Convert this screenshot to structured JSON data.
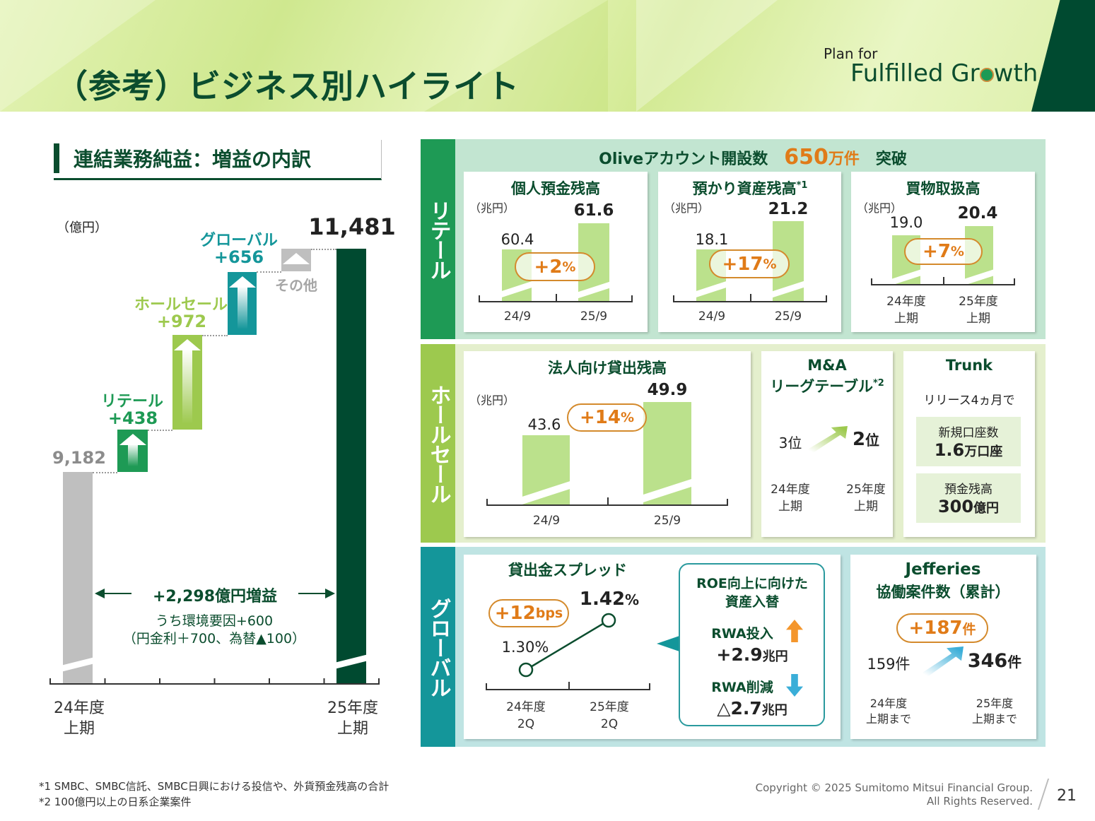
{
  "header": {
    "title": "（参考）ビジネス別ハイライト",
    "logo_line1": "Plan for",
    "logo_line2_a": "Fulfilled Gr",
    "logo_line2_b": "wth"
  },
  "colors": {
    "dark_green": "#004a30",
    "retail": "#1e9a55",
    "wholesale": "#9dc94e",
    "global": "#14969a",
    "other": "#bfbfbf",
    "accent_orange": "#e07b18"
  },
  "left": {
    "section_title": "連結業務純益：増益の内訳",
    "unit": "（億円）",
    "waterfall": {
      "start": {
        "label": "24年度\n上期",
        "line1": "24年度",
        "line2": "上期",
        "value": "9,182"
      },
      "steps": [
        {
          "name": "リテール",
          "value": "+438"
        },
        {
          "name": "ホールセール",
          "value": "+972"
        },
        {
          "name": "グローバル",
          "value": "+656"
        },
        {
          "name": "その他",
          "value": ""
        }
      ],
      "end": {
        "line1": "25年度",
        "line2": "上期",
        "value": "11,481"
      }
    },
    "increase_label": "+2,298億円増益",
    "increase_sub1": "うち環境要因+600",
    "increase_sub2": "（円金利＋700、為替▲100）"
  },
  "retail": {
    "label": "リテール",
    "headline_a": "Oliveアカウント開設数",
    "headline_num": "650",
    "headline_unit": "万件",
    "headline_b": "突破",
    "cards": [
      {
        "title": "個人預金残高",
        "unit": "（兆円）",
        "v1": "60.4",
        "v2": "61.6",
        "change": "+2",
        "change_unit": "%",
        "x1": "24/9",
        "x2": "25/9"
      },
      {
        "title": "預かり資産残高",
        "title_sup": "*1",
        "unit": "（兆円）",
        "v1": "18.1",
        "v2": "21.2",
        "change": "+17",
        "change_unit": "%",
        "x1": "24/9",
        "x2": "25/9"
      },
      {
        "title": "買物取扱高",
        "unit": "（兆円）",
        "v1": "19.0",
        "v2": "20.4",
        "change": "+7",
        "change_unit": "%",
        "x1a": "24年度",
        "x1b": "上期",
        "x2a": "25年度",
        "x2b": "上期"
      }
    ]
  },
  "wholesale": {
    "label": "ホールセール",
    "loans": {
      "title": "法人向け貸出残高",
      "unit": "（兆円）",
      "v1": "43.6",
      "v2": "49.9",
      "change": "+14",
      "change_unit": "%",
      "x1": "24/9",
      "x2": "25/9"
    },
    "ma": {
      "title1": "M&A",
      "title2": "リーグテーブル",
      "sup": "*2",
      "from": "3位",
      "to_num": "2",
      "to_unit": "位",
      "x1a": "24年度",
      "x1b": "上期",
      "x2a": "25年度",
      "x2b": "上期"
    },
    "trunk": {
      "title": "Trunk",
      "sub": "リリース4ヵ月で",
      "box1_label": "新規口座数",
      "box1_num": "1.6",
      "box1_unit": "万口座",
      "box2_label": "預金残高",
      "box2_num": "300",
      "box2_unit": "億円"
    }
  },
  "global": {
    "label": "グローバル",
    "spread": {
      "title": "貸出金スプレッド",
      "change": "+12",
      "change_unit": "bps",
      "v1": "1.30%",
      "v2_num": "1.42",
      "v2_unit": "%",
      "x1a": "24年度",
      "x1b": "2Q",
      "x2a": "25年度",
      "x2b": "2Q"
    },
    "roe": {
      "title1": "ROE向上に向けた",
      "title2": "資産入替",
      "in_label": "RWA投入",
      "in_num": "+2.9",
      "in_unit": "兆円",
      "out_label": "RWA削減",
      "out_num": "△2.7",
      "out_unit": "兆円"
    },
    "jefferies": {
      "title1": "Jefferies",
      "title2": "協働案件数（累計）",
      "change": "+187",
      "change_unit": "件",
      "from": "159件",
      "to_num": "346",
      "to_unit": "件",
      "x1a": "24年度",
      "x1b": "上期まで",
      "x2a": "25年度",
      "x2b": "上期まで"
    }
  },
  "footer": {
    "note1": "*1 SMBC、SMBC信託、SMBC日興における投信や、外貨預金残高の合計",
    "note2": "*2 100億円以上の日系企業案件",
    "copyright1": "Copyright © 2025 Sumitomo Mitsui Financial Group.",
    "copyright2": "All Rights Reserved.",
    "page": "21"
  }
}
